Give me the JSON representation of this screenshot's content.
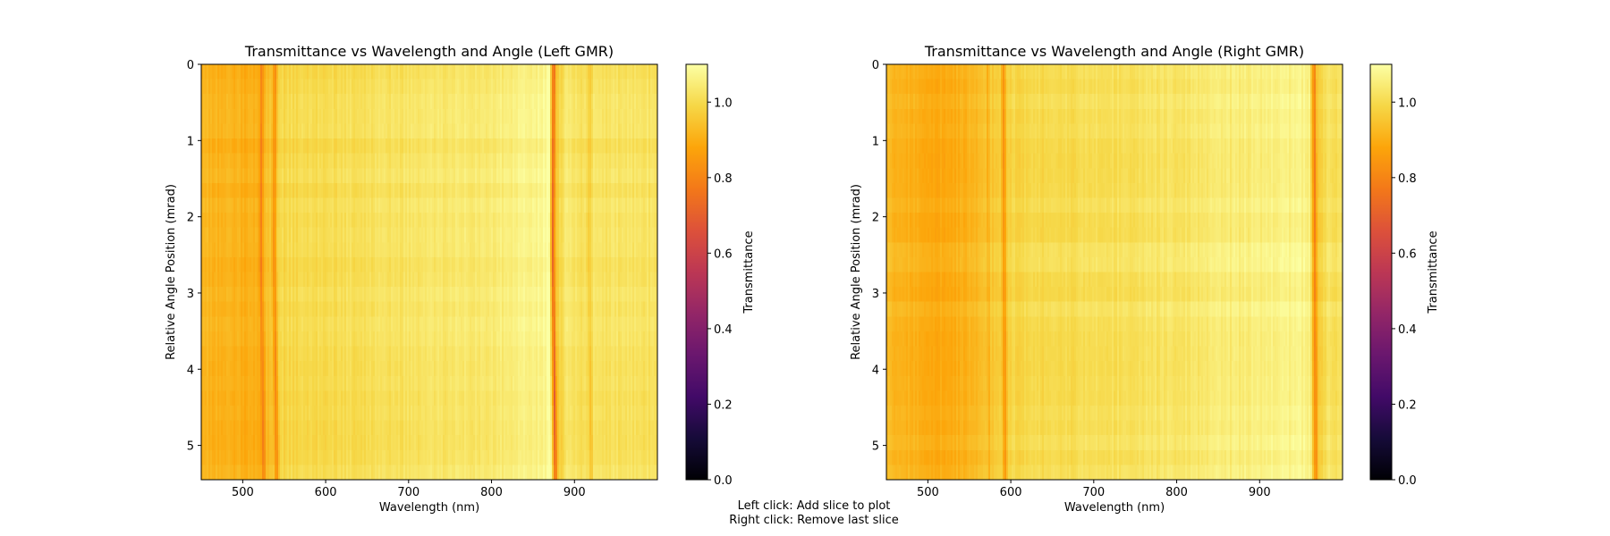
{
  "chart_data": [
    {
      "type": "heatmap",
      "title": "Transmittance vs Wavelength and Angle (Left GMR)",
      "xlabel": "Wavelength (nm)",
      "ylabel": "Relative Angle Position (mrad)",
      "xlim": [
        450,
        1000
      ],
      "ylim": [
        5.45,
        0
      ],
      "xticks": [
        "500",
        "600",
        "700",
        "800",
        "900"
      ],
      "yticks": [
        "0",
        "1",
        "2",
        "3",
        "4",
        "5"
      ],
      "colorbar_label": "Transmittance",
      "colorbar_ticks": [
        "0.0",
        "0.2",
        "0.4",
        "0.6",
        "0.8",
        "1.0"
      ],
      "clim": [
        0.0,
        1.1
      ],
      "colormap": "inferno",
      "transmittance_profile": [
        {
          "wavelength": 450,
          "value": 0.92
        },
        {
          "wavelength": 500,
          "value": 0.9
        },
        {
          "wavelength": 520,
          "value": 0.91
        },
        {
          "wavelength": 523,
          "value": 0.78
        },
        {
          "wavelength": 527,
          "value": 0.93
        },
        {
          "wavelength": 535,
          "value": 0.96
        },
        {
          "wavelength": 539,
          "value": 0.8
        },
        {
          "wavelength": 543,
          "value": 0.99
        },
        {
          "wavelength": 600,
          "value": 1.0
        },
        {
          "wavelength": 700,
          "value": 1.02
        },
        {
          "wavelength": 800,
          "value": 1.04
        },
        {
          "wavelength": 860,
          "value": 1.07
        },
        {
          "wavelength": 870,
          "value": 1.1
        },
        {
          "wavelength": 873,
          "value": 0.9
        },
        {
          "wavelength": 875,
          "value": 0.7
        },
        {
          "wavelength": 878,
          "value": 0.95
        },
        {
          "wavelength": 890,
          "value": 1.03
        },
        {
          "wavelength": 915,
          "value": 1.01
        },
        {
          "wavelength": 918,
          "value": 0.96
        },
        {
          "wavelength": 922,
          "value": 1.02
        },
        {
          "wavelength": 1000,
          "value": 1.02
        }
      ],
      "resonance_shift_with_angle": [
        {
          "angle": 0,
          "wavelength": 873
        },
        {
          "angle": 2.4,
          "wavelength": 872
        },
        {
          "angle": 5.45,
          "wavelength": 875
        }
      ]
    },
    {
      "type": "heatmap",
      "title": "Transmittance vs Wavelength and Angle (Right GMR)",
      "xlabel": "Wavelength (nm)",
      "ylabel": "Relative Angle Position (mrad)",
      "xlim": [
        450,
        1000
      ],
      "ylim": [
        5.45,
        0
      ],
      "xticks": [
        "500",
        "600",
        "700",
        "800",
        "900"
      ],
      "yticks": [
        "0",
        "1",
        "2",
        "3",
        "4",
        "5"
      ],
      "colorbar_label": "Transmittance",
      "colorbar_ticks": [
        "0.0",
        "0.2",
        "0.4",
        "0.6",
        "0.8",
        "1.0"
      ],
      "clim": [
        0.0,
        1.1
      ],
      "colormap": "inferno",
      "transmittance_profile": [
        {
          "wavelength": 450,
          "value": 0.93
        },
        {
          "wavelength": 480,
          "value": 0.91
        },
        {
          "wavelength": 520,
          "value": 0.89
        },
        {
          "wavelength": 560,
          "value": 0.93
        },
        {
          "wavelength": 570,
          "value": 0.95
        },
        {
          "wavelength": 572,
          "value": 0.9
        },
        {
          "wavelength": 575,
          "value": 0.96
        },
        {
          "wavelength": 587,
          "value": 0.97
        },
        {
          "wavelength": 591,
          "value": 0.84
        },
        {
          "wavelength": 595,
          "value": 0.99
        },
        {
          "wavelength": 700,
          "value": 1.01
        },
        {
          "wavelength": 800,
          "value": 1.03
        },
        {
          "wavelength": 900,
          "value": 1.06
        },
        {
          "wavelength": 960,
          "value": 1.07
        },
        {
          "wavelength": 964,
          "value": 0.88
        },
        {
          "wavelength": 966,
          "value": 0.78
        },
        {
          "wavelength": 969,
          "value": 0.96
        },
        {
          "wavelength": 980,
          "value": 1.02
        },
        {
          "wavelength": 1000,
          "value": 1.02
        }
      ],
      "resonance_shift_with_angle": [
        {
          "angle": 0,
          "wavelength": 964
        },
        {
          "angle": 5.45,
          "wavelength": 966
        }
      ]
    }
  ],
  "instructions": {
    "line1": "Left click: Add slice to plot",
    "line2": "Right click: Remove last slice"
  }
}
